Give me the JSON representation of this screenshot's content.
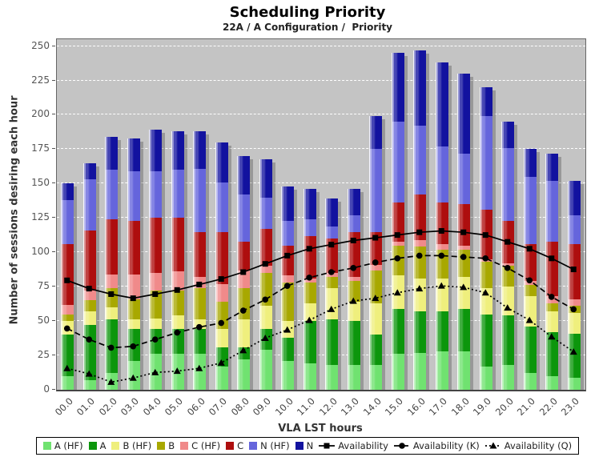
{
  "title": "Scheduling Priority",
  "subtitle": "22A / A Configuration /  Priority",
  "chart_data": {
    "type": "bar",
    "stacked": true,
    "title": "Scheduling Priority",
    "subtitle": "22A / A Configuration /  Priority",
    "xlabel": "VLA LST hours",
    "ylabel": "Number of sessions desiring each hour",
    "ylim": [
      0,
      255
    ],
    "yticks": [
      0,
      25,
      50,
      75,
      100,
      125,
      150,
      175,
      200,
      225,
      250
    ],
    "grid": "horizontal-white-dashed",
    "plot_background": "#c4c4c4",
    "legend_position": "bottom",
    "bar_shadow": true,
    "categories": [
      "00.0",
      "01.0",
      "02.0",
      "03.0",
      "04.0",
      "05.0",
      "06.0",
      "07.0",
      "08.0",
      "09.0",
      "10.0",
      "11.0",
      "12.0",
      "13.0",
      "14.0",
      "15.0",
      "16.0",
      "17.0",
      "18.0",
      "19.0",
      "20.0",
      "21.0",
      "22.0",
      "23.0"
    ],
    "series": [
      {
        "name": "A (HF)",
        "color": "#70E270",
        "values": [
          10,
          7,
          12,
          21,
          26,
          26,
          26,
          17,
          22,
          29,
          21,
          19,
          18,
          18,
          18,
          26,
          27,
          28,
          28,
          17,
          18,
          12,
          10,
          9
        ]
      },
      {
        "name": "A",
        "color": "#0C960C",
        "values": [
          30,
          40,
          39,
          23,
          18,
          18,
          18,
          14,
          9,
          15,
          17,
          31,
          33,
          32,
          22,
          33,
          30,
          29,
          31,
          38,
          36,
          34,
          32,
          32
        ]
      },
      {
        "name": "B (HF)",
        "color": "#EFEF7D",
        "values": [
          10,
          10,
          9,
          7,
          8,
          10,
          7,
          13,
          20,
          17,
          12,
          13,
          23,
          14,
          23,
          24,
          24,
          24,
          23,
          19,
          21,
          22,
          15,
          15
        ]
      },
      {
        "name": "B",
        "color": "#A8A800",
        "values": [
          5,
          8,
          14,
          15,
          20,
          18,
          23,
          20,
          23,
          24,
          28,
          15,
          8,
          15,
          24,
          22,
          23,
          21,
          20,
          19,
          15,
          8,
          6,
          5
        ]
      },
      {
        "name": "C (HF)",
        "color": "#F08A8A",
        "values": [
          7,
          7,
          10,
          18,
          13,
          14,
          8,
          13,
          13,
          5,
          5,
          3,
          3,
          3,
          4,
          3,
          5,
          4,
          3,
          2,
          2,
          3,
          5,
          5
        ]
      },
      {
        "name": "C",
        "color": "#AE0E0E",
        "values": [
          44,
          44,
          40,
          39,
          40,
          39,
          33,
          38,
          21,
          27,
          22,
          31,
          25,
          33,
          24,
          28,
          33,
          30,
          30,
          36,
          31,
          27,
          40,
          40
        ]
      },
      {
        "name": "N (HF)",
        "color": "#6565DC",
        "values": [
          32,
          37,
          36,
          36,
          34,
          35,
          46,
          36,
          34,
          23,
          18,
          12,
          9,
          12,
          60,
          59,
          50,
          41,
          37,
          68,
          53,
          49,
          44,
          21
        ]
      },
      {
        "name": "N",
        "color": "#12129F",
        "values": [
          12,
          12,
          24,
          24,
          30,
          28,
          27,
          29,
          28,
          28,
          25,
          22,
          20,
          19,
          24,
          50,
          55,
          61,
          58,
          21,
          19,
          20,
          20,
          25
        ]
      }
    ],
    "bar_totals": [
      150,
      165,
      184,
      183,
      189,
      188,
      188,
      180,
      170,
      168,
      148,
      146,
      139,
      146,
      199,
      245,
      247,
      238,
      230,
      220,
      195,
      175,
      172,
      152
    ],
    "lines": [
      {
        "name": "Availability",
        "color": "#000000",
        "marker": "square",
        "dash": "solid",
        "values": [
          79,
          73,
          69,
          66,
          69,
          72,
          76,
          80,
          85,
          91,
          97,
          102,
          105,
          108,
          110,
          112,
          114,
          115,
          114,
          112,
          107,
          102,
          95,
          87
        ]
      },
      {
        "name": "Availability (K)",
        "color": "#000000",
        "marker": "circle",
        "dash": "dashed",
        "values": [
          44,
          36,
          30,
          31,
          36,
          41,
          45,
          48,
          57,
          65,
          75,
          81,
          85,
          88,
          92,
          95,
          97,
          97,
          96,
          95,
          88,
          79,
          67,
          58
        ]
      },
      {
        "name": "Availability (Q)",
        "color": "#000000",
        "marker": "triangle",
        "dash": "dotted",
        "values": [
          15,
          11,
          5,
          8,
          12,
          13,
          15,
          19,
          28,
          37,
          43,
          50,
          58,
          64,
          66,
          70,
          73,
          75,
          74,
          70,
          59,
          50,
          38,
          27
        ]
      }
    ]
  }
}
